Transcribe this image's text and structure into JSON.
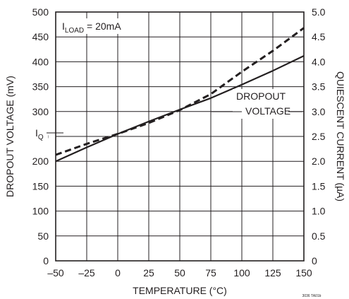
{
  "chart_data": {
    "type": "line",
    "xlabel": "TEMPERATURE (°C)",
    "ylabel": "DROPOUT VOLTAGE (mV)",
    "y2label": "QUIESCENT CURRENT (µA)",
    "xlim": [
      -50,
      150
    ],
    "ylim": [
      0,
      500
    ],
    "y2lim": [
      0,
      5
    ],
    "x_ticks": [
      -50,
      -25,
      0,
      25,
      50,
      75,
      100,
      125,
      150
    ],
    "x_tick_labels": [
      "–50",
      "–25",
      "0",
      "25",
      "50",
      "75",
      "100",
      "125",
      "150"
    ],
    "y_ticks": [
      0,
      50,
      100,
      150,
      200,
      250,
      300,
      350,
      400,
      450,
      500
    ],
    "y_tick_labels": [
      "0",
      "50",
      "100",
      "150",
      "200",
      "250",
      "300",
      "350",
      "400",
      "450",
      "500"
    ],
    "y2_ticks": [
      0,
      0.5,
      1.0,
      1.5,
      2.0,
      2.5,
      3.0,
      3.5,
      4.0,
      4.5,
      5.0
    ],
    "y2_tick_labels": [
      "0",
      "0.5",
      "1.0",
      "1.5",
      "2.0",
      "2.5",
      "3.0",
      "3.5",
      "4.0",
      "4.5",
      "5.0"
    ],
    "grid": true,
    "series": [
      {
        "name": "DROPOUT VOLTAGE",
        "axis": "left",
        "style": "solid",
        "x": [
          -50,
          -25,
          0,
          25,
          50,
          75,
          100,
          125,
          150
        ],
        "y": [
          200,
          228,
          255,
          280,
          304,
          327,
          354,
          382,
          412
        ]
      },
      {
        "name": "IQ",
        "axis": "right",
        "style": "dashed",
        "x": [
          -50,
          -25,
          0,
          25,
          50,
          75,
          100,
          125,
          150
        ],
        "y": [
          2.13,
          2.35,
          2.55,
          2.77,
          3.03,
          3.35,
          3.8,
          4.22,
          4.68
        ]
      }
    ],
    "annotations": {
      "load_prefix": "I",
      "load_sub": "LOAD",
      "load_suffix": " = 20mA",
      "iq_prefix": "I",
      "iq_sub": "Q",
      "dropout_line1": "DROPOUT",
      "dropout_line2": "VOLTAGE"
    },
    "note": "3036 TA01b",
    "colors": {
      "line": "#231f20",
      "grid": "#231f20",
      "background": "#ffffff"
    }
  }
}
